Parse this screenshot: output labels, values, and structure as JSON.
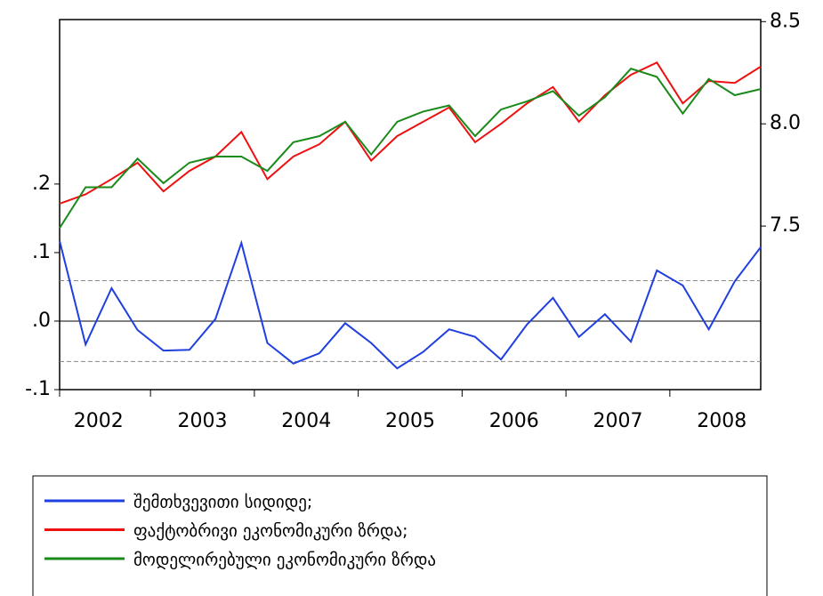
{
  "chart_data": {
    "type": "line",
    "categories": [
      "2002",
      null,
      null,
      null,
      "2003",
      null,
      null,
      null,
      "2004",
      null,
      null,
      null,
      "2005",
      null,
      null,
      null,
      "2006",
      null,
      null,
      null,
      "2007",
      null,
      null,
      null,
      "2008",
      null,
      null,
      null
    ],
    "series": [
      {
        "name": "შემთხვევითი სიდიდე;",
        "color": "#1f3fe0",
        "axis": "y",
        "values": [
          0.117,
          -0.034,
          0.048,
          -0.013,
          -0.043,
          -0.042,
          0.003,
          0.114,
          -0.032,
          -0.062,
          -0.047,
          -0.003,
          -0.032,
          -0.069,
          -0.045,
          -0.012,
          -0.023,
          -0.056,
          -0.005,
          0.034,
          -0.023,
          0.01,
          -0.03,
          0.074,
          0.052,
          -0.012,
          0.058,
          0.108
        ]
      },
      {
        "name": "ფაქტობრივი ეკონომიკური ზრდა;",
        "color": "#ee1111",
        "axis": "y2",
        "values": [
          7.61,
          7.655,
          7.73,
          7.81,
          7.67,
          7.77,
          7.84,
          7.96,
          7.73,
          7.84,
          7.9,
          8.01,
          7.82,
          7.94,
          8.01,
          8.08,
          7.91,
          8.0,
          8.1,
          8.18,
          8.01,
          8.14,
          8.24,
          8.3,
          8.1,
          8.21,
          8.2,
          8.28
        ]
      },
      {
        "name": "მოდელირებული ეკონომიკური ზრდა",
        "color": "#1a8a1a",
        "axis": "y2",
        "values": [
          7.49,
          7.69,
          7.69,
          7.83,
          7.71,
          7.81,
          7.84,
          7.84,
          7.77,
          7.91,
          7.94,
          8.01,
          7.85,
          8.01,
          8.06,
          8.09,
          7.94,
          8.07,
          8.11,
          8.16,
          8.04,
          8.13,
          8.27,
          8.23,
          8.05,
          8.22,
          8.14,
          8.17
        ]
      }
    ],
    "ylim": [
      -0.1,
      0.44
    ],
    "yticks": [
      {
        "value": -0.1,
        "label": "-.1"
      },
      {
        "value": 0,
        "label": ".0"
      },
      {
        "value": 0.1,
        "label": ".1"
      },
      {
        "value": 0.2,
        "label": ".2"
      }
    ],
    "y2lim": [
      6.7,
      8.51
    ],
    "y2ticks": [
      7.5,
      {
        "value": 8,
        "label": "8.0"
      },
      8.5
    ],
    "bands": [
      -0.059,
      0.059
    ],
    "zero_line": 0,
    "legend": "bottom"
  }
}
